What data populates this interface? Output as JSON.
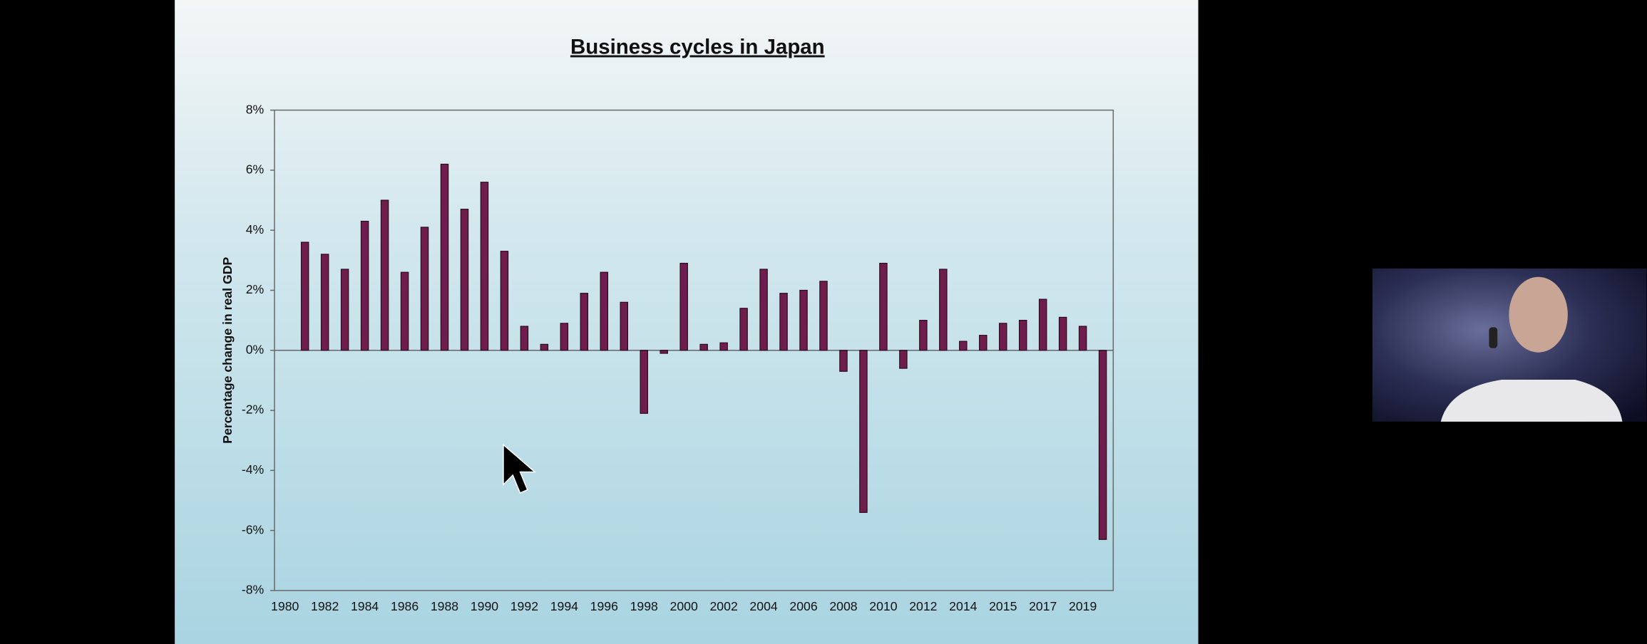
{
  "chart_data": {
    "type": "bar",
    "title": "Business cycles in Japan",
    "y_label": "Percentage change in real GDP",
    "categories": [
      "1980",
      null,
      "1982",
      null,
      "1984",
      null,
      "1986",
      null,
      "1988",
      null,
      "1990",
      null,
      "1992",
      null,
      "1994",
      null,
      "1996",
      null,
      "1998",
      null,
      "2000",
      null,
      "2002",
      null,
      "2004",
      null,
      "2006",
      null,
      "2008",
      null,
      "2010",
      null,
      "2012",
      null,
      "2014",
      null,
      "2015",
      null,
      "2017",
      null,
      "2019",
      null
    ],
    "values": [
      null,
      3.6,
      3.2,
      2.7,
      4.3,
      5.0,
      2.6,
      4.1,
      6.2,
      4.7,
      5.6,
      3.3,
      0.8,
      0.2,
      0.9,
      1.9,
      2.6,
      1.6,
      -2.1,
      -0.1,
      2.9,
      0.2,
      0.25,
      1.4,
      2.7,
      1.9,
      2.0,
      2.3,
      -0.7,
      -5.4,
      2.9,
      -0.6,
      1.0,
      2.7,
      0.3,
      0.5,
      0.9,
      1.0,
      1.7,
      1.1,
      0.8,
      -6.3
    ],
    "color": "#6e1d4c",
    "ylim": [
      -8,
      8
    ],
    "yticks": [
      {
        "value": -8,
        "label": "-8%"
      },
      {
        "value": -6,
        "label": "-6%"
      },
      {
        "value": -4,
        "label": "-4%"
      },
      {
        "value": -2,
        "label": "-2%"
      },
      {
        "value": 0,
        "label": "0%"
      },
      {
        "value": 2,
        "label": "2%"
      },
      {
        "value": 4,
        "label": "4%"
      },
      {
        "value": 6,
        "label": "6%"
      },
      {
        "value": 8,
        "label": "8%"
      }
    ],
    "grid": false
  }
}
